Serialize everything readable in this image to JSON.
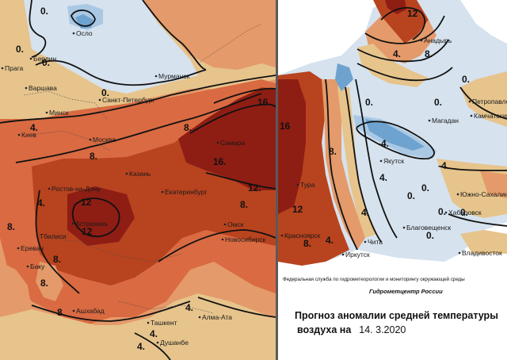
{
  "palette": {
    "neg_light": "#d6e2ee",
    "neg_mid": "#a9c8e4",
    "neg_dark": "#6fa3cf",
    "pos_0_4": "#e6c48c",
    "pos_4_8": "#e49a6a",
    "pos_8_12": "#d96a42",
    "pos_12_16": "#b8431f",
    "pos_16_plus": "#8e1d14",
    "sea": "#ffffff",
    "isoline": "#111111"
  },
  "left_map": {
    "cities": [
      "Осло",
      "Берлин",
      "Прага",
      "Варшава",
      "Мурманск",
      "Санкт-Петербург",
      "Минск",
      "Киев",
      "Москва",
      "Самара",
      "Казань",
      "Ростов-на-Дону",
      "Екатеринбург",
      "Астрахань",
      "Тбилиси",
      "Омск",
      "Новосибирск",
      "Ереван",
      "Баку",
      "Ашхабад",
      "Ташкент",
      "Алма-Ата",
      "Душанбе"
    ],
    "isolines": [
      "0.",
      "0.",
      "0.",
      "0.",
      "4.",
      "4.",
      "8.",
      "8.",
      "8.",
      "8.",
      "12",
      "12",
      "12.",
      "16",
      "16.",
      "8.",
      "4.",
      "4.",
      "4.",
      "8.",
      "8."
    ]
  },
  "right_map": {
    "cities": [
      "Анадырь",
      "Петропавловск",
      "Камчатский",
      "Магадан",
      "Якутск",
      "Южно-Сахалинск",
      "Хабаровск",
      "Благовещенск",
      "Чита",
      "Иркутск",
      "Красноярск",
      "Тура",
      "Владивосток"
    ],
    "isolines": [
      "12",
      "8.",
      "4.",
      "0.",
      "0.",
      "0.",
      "-4.",
      "-4.",
      "0.",
      "0.",
      "0.",
      "0.",
      "0.",
      "4.",
      "4.",
      "8.",
      "12",
      "16",
      "8.",
      "4."
    ]
  },
  "captions": {
    "agency": "Федеральная служба по гидрометеорологии и мониторингу окружающей среды",
    "organization": "Гидрометцентр России",
    "title_line1": "Прогноз аномалии средней температуры",
    "title_line2": "воздуха на",
    "date": "14. 3.2020"
  }
}
